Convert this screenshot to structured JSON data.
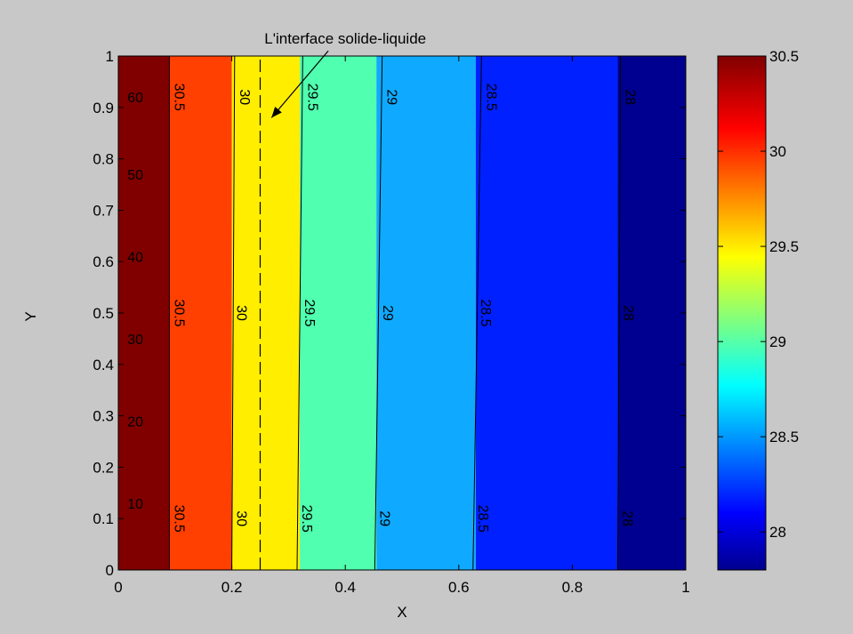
{
  "figure": {
    "background": "#c8c8c8"
  },
  "chart_data": {
    "type": "heatmap",
    "subtype": "filled-contour",
    "xlabel": "X",
    "ylabel": "Y",
    "xlim": [
      0,
      1
    ],
    "ylim": [
      0,
      1
    ],
    "xticks": [
      "0",
      "0.2",
      "0.4",
      "0.6",
      "0.8",
      "1"
    ],
    "yticks": [
      "0",
      "0.1",
      "0.2",
      "0.3",
      "0.4",
      "0.5",
      "0.6",
      "0.7",
      "0.8",
      "0.9",
      "1"
    ],
    "grid": false,
    "colormap": "jet",
    "bands": [
      {
        "from": 0.0,
        "to": 0.09,
        "level": "above 30.5",
        "color": "#800000"
      },
      {
        "from": 0.09,
        "to": 0.2,
        "level": "30.5-30",
        "color": "#ff4000"
      },
      {
        "from": 0.2,
        "to": 0.32,
        "level": "30-29.5",
        "color": "#ffee00"
      },
      {
        "from": 0.32,
        "to": 0.455,
        "level": "29.5-29",
        "color": "#50ffaf"
      },
      {
        "from": 0.455,
        "to": 0.63,
        "level": "29-28.5",
        "color": "#0faaff"
      },
      {
        "from": 0.63,
        "to": 0.88,
        "level": "28.5-28",
        "color": "#0020ff"
      },
      {
        "from": 0.88,
        "to": 1.0,
        "level": "below 28",
        "color": "#000090"
      }
    ],
    "contours": [
      {
        "level": "30.5",
        "x_bottom": 0.09,
        "x_top": 0.09,
        "label_xs": [
          0.09,
          0.09,
          0.09
        ]
      },
      {
        "level": "30",
        "x_bottom": 0.2,
        "x_top": 0.205,
        "label_xs": [
          0.2,
          0.2,
          0.205
        ]
      },
      {
        "level": "29.5",
        "x_bottom": 0.315,
        "x_top": 0.325,
        "label_xs": [
          0.315,
          0.32,
          0.325
        ]
      },
      {
        "level": "29",
        "x_bottom": 0.452,
        "x_top": 0.465,
        "label_xs": [
          0.452,
          0.458,
          0.465
        ]
      },
      {
        "level": "28.5",
        "x_bottom": 0.625,
        "x_top": 0.64,
        "label_xs": [
          0.625,
          0.63,
          0.64
        ]
      },
      {
        "level": "28",
        "x_bottom": 0.88,
        "x_top": 0.885,
        "label_xs": [
          0.88,
          0.882,
          0.885
        ]
      }
    ],
    "contour_label_ys": [
      0.1,
      0.5,
      0.92
    ],
    "extra_labels": [
      {
        "text": "60",
        "x": 0.03,
        "y": 0.92
      },
      {
        "text": "50",
        "x": 0.03,
        "y": 0.77
      },
      {
        "text": "40",
        "x": 0.03,
        "y": 0.61
      },
      {
        "text": "30",
        "x": 0.03,
        "y": 0.45
      },
      {
        "text": "20",
        "x": 0.03,
        "y": 0.29
      },
      {
        "text": "10",
        "x": 0.03,
        "y": 0.13
      }
    ],
    "interface": {
      "x": 0.25,
      "style": "dashed",
      "annotation": "L'interface solide-liquide",
      "annotation_x": 0.4,
      "annotation_y": 1.035,
      "arrow_from": [
        0.37,
        1.01
      ],
      "arrow_to": [
        0.27,
        0.88
      ]
    },
    "colorbar": {
      "min": 27.8,
      "max": 30.5,
      "ticks": [
        "28",
        "28.5",
        "29",
        "29.5",
        "30",
        "30.5"
      ],
      "colormap": "jet"
    }
  }
}
